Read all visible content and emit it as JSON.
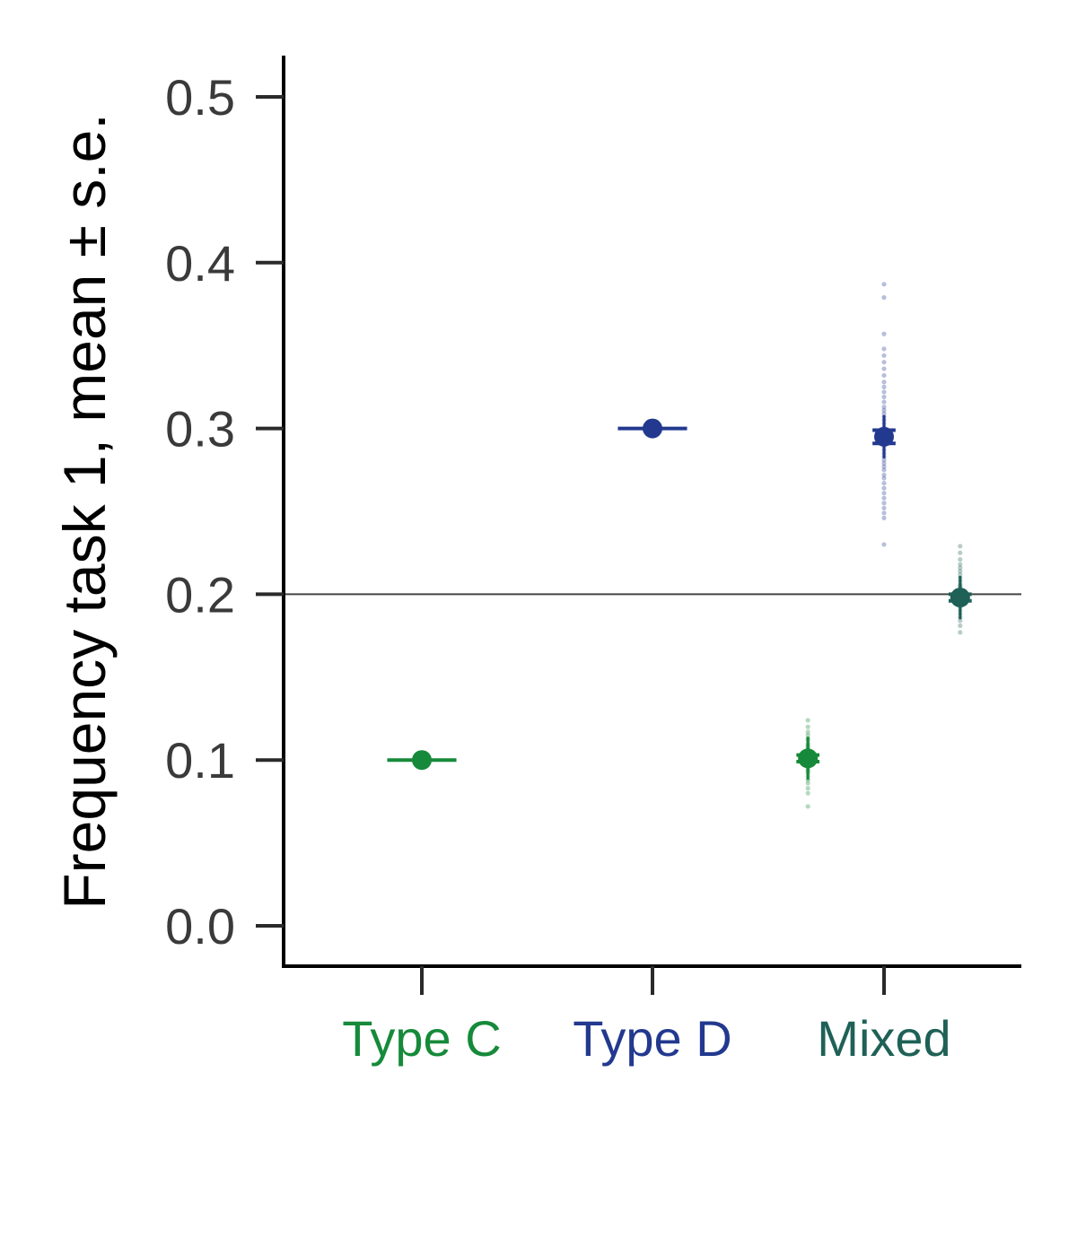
{
  "colors": {
    "type_c": "#168a3a",
    "type_d": "#22398f",
    "mixed": "#1f6156",
    "axis": "#000000",
    "tick": "#2a2a2a",
    "refline": "#444444"
  },
  "chart_data": {
    "type": "scatter",
    "title": "",
    "ylabel": "Frequency task 1, mean ± s.e.",
    "xlabel": "",
    "ylim": [
      -0.025,
      0.525
    ],
    "yticks": [
      0.0,
      0.1,
      0.2,
      0.3,
      0.4,
      0.5
    ],
    "ytick_labels": [
      "0.0",
      "0.1",
      "0.2",
      "0.3",
      "0.4",
      "0.5"
    ],
    "categories": [
      "Type C",
      "Type D",
      "Mixed"
    ],
    "category_colors": [
      "#168a3a",
      "#22398f",
      "#1f6156"
    ],
    "reference_line": 0.2,
    "grid": false,
    "series": [
      {
        "category": "Type C",
        "offset": 0.0,
        "color": "#168a3a",
        "mean": 0.1,
        "se": 0.0,
        "band": 0.3,
        "points": []
      },
      {
        "category": "Type D",
        "offset": 0.0,
        "color": "#22398f",
        "mean": 0.3,
        "se": 0.0,
        "band": 0.3,
        "points": []
      },
      {
        "category": "Mixed",
        "offset": -0.33,
        "color": "#168a3a",
        "mean": 0.101,
        "se": 0.002,
        "band": 0.1,
        "points": [
          0.124,
          0.12,
          0.117,
          0.115,
          0.113,
          0.112,
          0.11,
          0.109,
          0.108,
          0.107,
          0.106,
          0.105,
          0.104,
          0.103,
          0.102,
          0.101,
          0.1,
          0.099,
          0.098,
          0.097,
          0.096,
          0.095,
          0.094,
          0.093,
          0.092,
          0.09,
          0.088,
          0.086,
          0.083,
          0.08,
          0.072
        ]
      },
      {
        "category": "Mixed",
        "offset": 0.0,
        "color": "#22398f",
        "mean": 0.295,
        "se": 0.004,
        "band": 0.1,
        "points": [
          0.387,
          0.379,
          0.357,
          0.348,
          0.344,
          0.34,
          0.336,
          0.332,
          0.328,
          0.325,
          0.322,
          0.319,
          0.316,
          0.313,
          0.311,
          0.309,
          0.307,
          0.305,
          0.303,
          0.301,
          0.299,
          0.297,
          0.295,
          0.293,
          0.291,
          0.289,
          0.287,
          0.285,
          0.283,
          0.281,
          0.279,
          0.277,
          0.275,
          0.272,
          0.27,
          0.267,
          0.264,
          0.261,
          0.258,
          0.255,
          0.252,
          0.249,
          0.246,
          0.23
        ]
      },
      {
        "category": "Mixed",
        "offset": 0.33,
        "color": "#1f6156",
        "mean": 0.198,
        "se": 0.002,
        "band": 0.1,
        "points": [
          0.229,
          0.225,
          0.221,
          0.218,
          0.216,
          0.214,
          0.212,
          0.21,
          0.208,
          0.206,
          0.205,
          0.204,
          0.203,
          0.202,
          0.201,
          0.2,
          0.199,
          0.198,
          0.197,
          0.196,
          0.195,
          0.194,
          0.193,
          0.192,
          0.19,
          0.188,
          0.186,
          0.184,
          0.181,
          0.177
        ]
      }
    ]
  }
}
